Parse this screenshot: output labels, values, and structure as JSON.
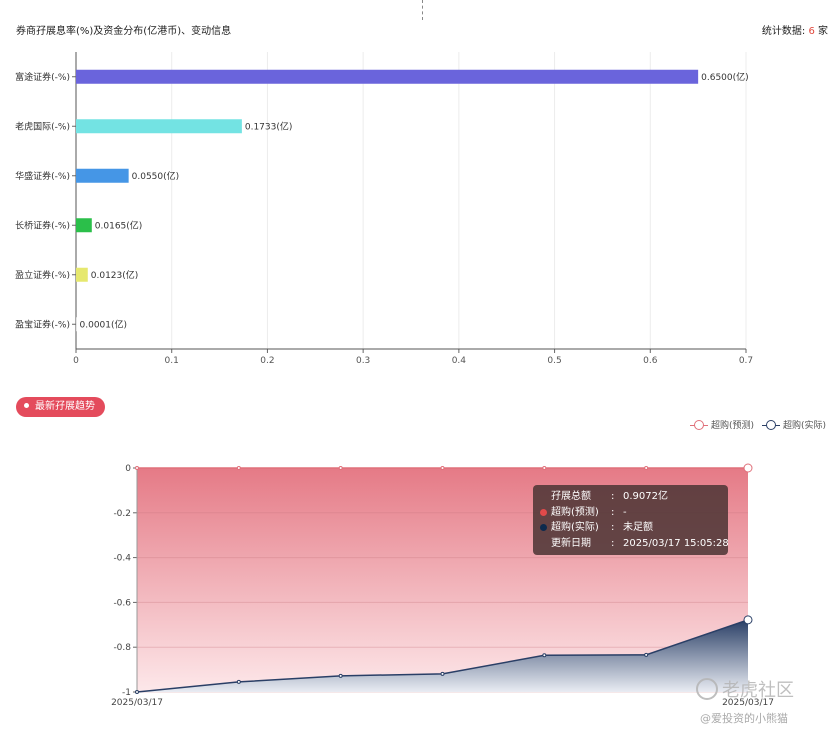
{
  "header": {
    "title": "券商孖展息率(%)及资金分布(亿港币)、变动信息",
    "stat_label": "统计数据:",
    "stat_count": "6",
    "stat_unit": "家"
  },
  "chart_data": [
    {
      "type": "bar",
      "orientation": "horizontal",
      "categories": [
        "富途证券(-%)",
        "老虎国际(-%)",
        "华盛证券(-%)",
        "长桥证券(-%)",
        "盈立证券(-%)",
        "盈宝证券(-%)"
      ],
      "values": [
        0.65,
        0.1733,
        0.055,
        0.0165,
        0.0123,
        0.0001
      ],
      "value_labels": [
        "0.6500(亿)",
        "0.1733(亿)",
        "0.0550(亿)",
        "0.0165(亿)",
        "0.0123(亿)",
        "0.0001(亿)"
      ],
      "colors": [
        "#6a64dc",
        "#73e3e3",
        "#4596e6",
        "#2bbf4a",
        "#e6e86e",
        "#cccccc"
      ],
      "xlim": [
        0,
        0.7
      ],
      "xticks": [
        "0",
        "0.1",
        "0.2",
        "0.3",
        "0.4",
        "0.5",
        "0.6",
        "0.7"
      ],
      "grid": true
    },
    {
      "type": "area",
      "x": [
        "2025/03/17",
        "",
        "",
        "",
        "",
        "",
        "2025/03/17"
      ],
      "x_tick_labels": [
        "2025/03/17",
        "2025/03/17"
      ],
      "ylim": [
        -1,
        0
      ],
      "yticks": [
        "0",
        "-0.2",
        "-0.4",
        "-0.6",
        "-0.8",
        "-1"
      ],
      "series": [
        {
          "name": "超购(预测)",
          "values": [
            0,
            0,
            0,
            0,
            0,
            0,
            0
          ],
          "color": "#e0707a"
        },
        {
          "name": "超购(实际)",
          "values": [
            -1,
            -0.955,
            -0.928,
            -0.919,
            -0.836,
            -0.834,
            -0.678
          ],
          "color": "#2a3f66"
        }
      ],
      "legend_position": "top-right",
      "grid": true
    }
  ],
  "badge": {
    "label": "最新孖展趋势"
  },
  "tooltip": {
    "rows": [
      {
        "label": "孖展总额",
        "value": "0.9072亿",
        "color": ""
      },
      {
        "label": "超购(预测)",
        "value": "-",
        "color": "#e14a4a"
      },
      {
        "label": "超购(实际)",
        "value": "未足额",
        "color": "#0e2a4d"
      },
      {
        "label": "更新日期",
        "value": "2025/03/17 15:05:28",
        "color": ""
      }
    ]
  },
  "watermark": {
    "brand": "老虎社区",
    "handle": "@爱投资的小熊猫"
  }
}
